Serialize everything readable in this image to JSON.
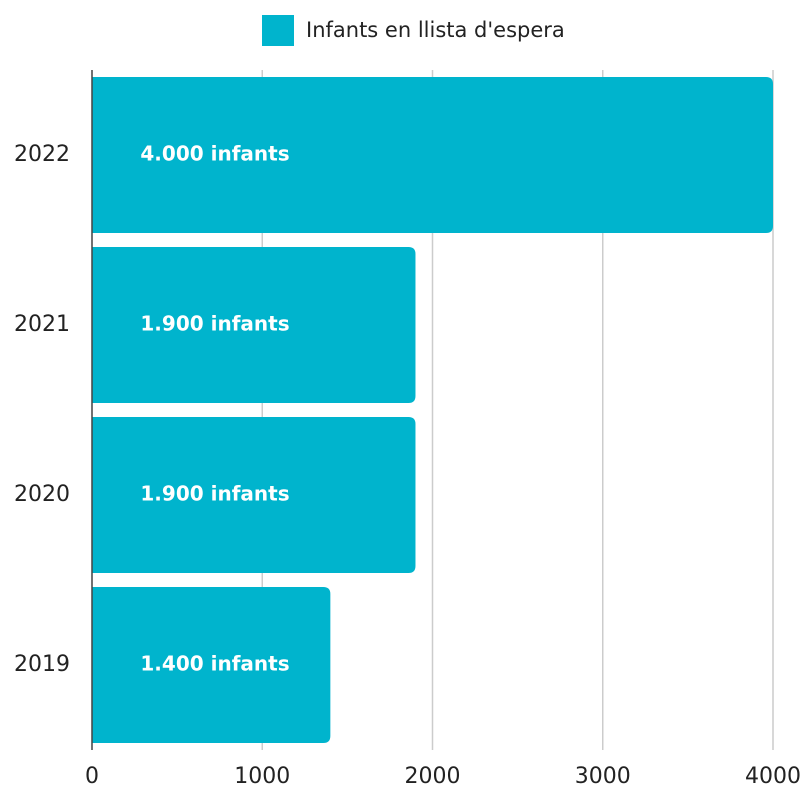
{
  "chart_data": {
    "type": "bar",
    "orientation": "horizontal",
    "legend": "top",
    "categories": [
      "2022",
      "2021",
      "2020",
      "2019"
    ],
    "series": [
      {
        "name": "Infants en llista d'espera",
        "color": "#00b4cd",
        "values": [
          4000,
          1900,
          1900,
          1400
        ],
        "value_labels": [
          "4.000 infants",
          "1.900 infants",
          "1.900 infants",
          "1.400 infants"
        ]
      }
    ],
    "xlim": [
      0,
      4000
    ],
    "xticks": [
      0,
      1000,
      2000,
      3000,
      4000
    ],
    "grid": true
  }
}
